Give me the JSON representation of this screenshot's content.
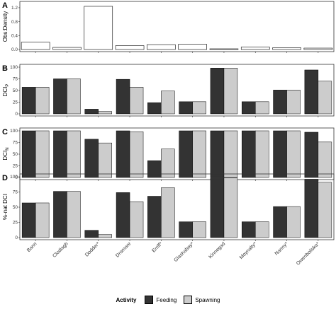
{
  "colors": {
    "feeding": "#333333",
    "spawning": "#cccccc",
    "single": "#ffffff"
  },
  "legend": {
    "title": "Activity",
    "items": [
      "Feeding",
      "Spawning"
    ]
  },
  "chart_data": [
    {
      "panel": "A",
      "type": "bar",
      "ylabel": "Obs:Density",
      "ylim": [
        0,
        1.3
      ],
      "yticks": [
        "0.0",
        "0.4",
        "0.8",
        "1.2"
      ],
      "categories": [
        "Bann",
        "Clodiagh",
        "Dodder*",
        "Dromore",
        "Erriff*",
        "Glashaboy*",
        "Kinnegad",
        "Moynalty*",
        "Nanny*",
        "Owenboliska*"
      ],
      "values": [
        0.21,
        0.06,
        1.24,
        0.11,
        0.14,
        0.15,
        0.02,
        0.07,
        0.05,
        0.04
      ]
    },
    {
      "panel": "B",
      "type": "bar",
      "ylabel": "DCIP",
      "ylim": [
        0,
        100
      ],
      "yticks": [
        "0",
        "25",
        "50",
        "75",
        "100"
      ],
      "categories": [
        "Bann",
        "Clodiagh",
        "Dodder*",
        "Dromore",
        "Erriff*",
        "Glashaboy*",
        "Kinnegad",
        "Moynalty*",
        "Nanny*",
        "Owenboliska*"
      ],
      "series": [
        {
          "name": "Feeding",
          "values": [
            57,
            75,
            10,
            74,
            24,
            26,
            98,
            26,
            51,
            94
          ]
        },
        {
          "name": "Spawning",
          "values": [
            57,
            75,
            5,
            57,
            49,
            26,
            98,
            26,
            51,
            70
          ]
        }
      ]
    },
    {
      "panel": "C",
      "type": "bar",
      "ylabel": "DCIN",
      "ylim": [
        0,
        100
      ],
      "yticks": [
        "0",
        "25",
        "50",
        "75",
        "100"
      ],
      "categories": [
        "Bann",
        "Clodiagh",
        "Dodder*",
        "Dromore",
        "Erriff*",
        "Glashaboy*",
        "Kinnegad",
        "Moynalty*",
        "Nanny*",
        "Owenboliska*"
      ],
      "series": [
        {
          "name": "Feeding",
          "values": [
            100,
            100,
            82,
            100,
            36,
            100,
            100,
            100,
            100,
            97
          ]
        },
        {
          "name": "Spawning",
          "values": [
            100,
            100,
            74,
            98,
            61,
            100,
            100,
            100,
            100,
            76
          ]
        }
      ]
    },
    {
      "panel": "D",
      "type": "bar",
      "ylabel": "%-nat DCI",
      "ylim": [
        0,
        100
      ],
      "yticks": [
        "0",
        "25",
        "50",
        "75",
        "100"
      ],
      "categories": [
        "Bann",
        "Clodiagh",
        "Dodder*",
        "Dromore",
        "Erriff*",
        "Glashaboy*",
        "Kinnegad",
        "Moynalty*",
        "Nanny*",
        "Owenboliska*"
      ],
      "series": [
        {
          "name": "Feeding",
          "values": [
            57,
            76,
            12,
            74,
            68,
            26,
            98,
            26,
            51,
            96
          ]
        },
        {
          "name": "Spawning",
          "values": [
            57,
            76,
            5,
            59,
            82,
            26,
            98,
            26,
            51,
            91
          ]
        }
      ]
    }
  ]
}
